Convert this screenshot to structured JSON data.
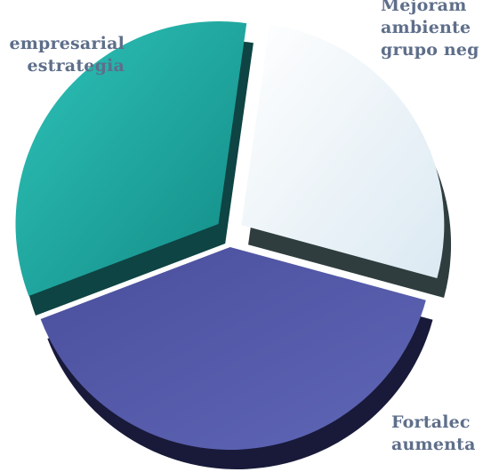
{
  "chart_data": {
    "type": "pie",
    "categories": [
      "Mejoram ambiente grupo neg",
      "Fortalec aumenta",
      "empresarial estrategia"
    ],
    "values": [
      27,
      40,
      33
    ],
    "colors": {
      "series": [
        "#eaf3f8",
        "#535aa8",
        "#1ea6a0"
      ],
      "label_text": "#5e6e8a"
    },
    "labels": [
      {
        "lines": [
          "Mejoram",
          "ambiente",
          "grupo neg"
        ]
      },
      {
        "lines": [
          "Fortalec",
          "aumenta"
        ]
      },
      {
        "lines": [
          "empresarial",
          "estrategia"
        ]
      }
    ]
  }
}
